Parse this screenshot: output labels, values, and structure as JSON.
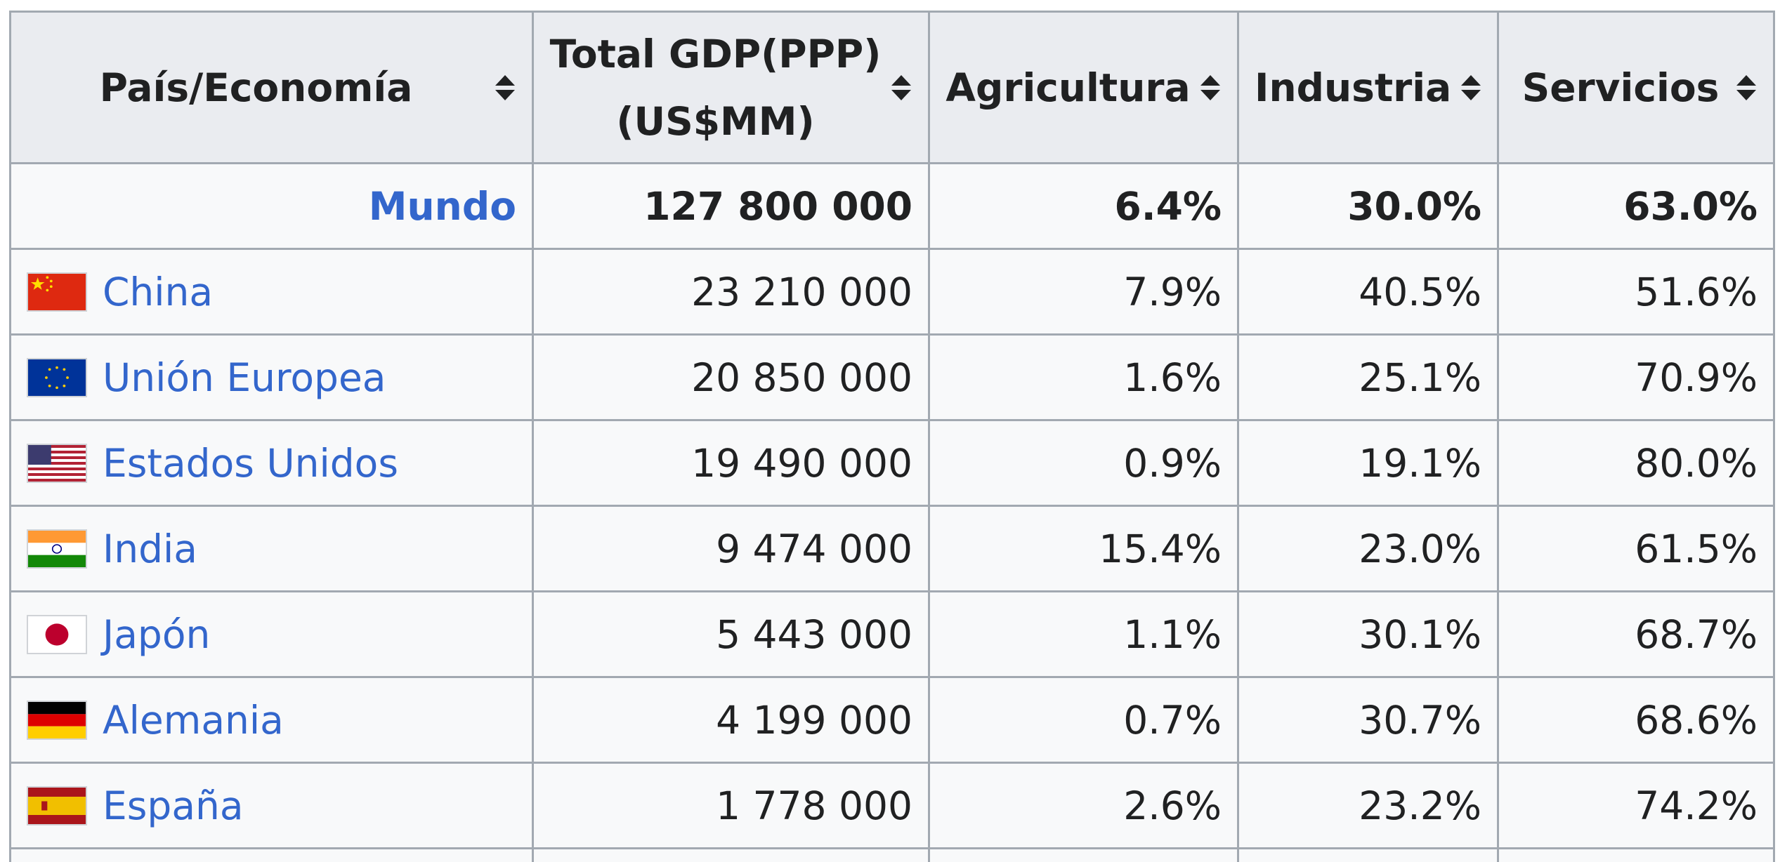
{
  "table": {
    "headers": [
      {
        "label": "País/Economía"
      },
      {
        "label": "Total GDP(PPP) (US$MM)"
      },
      {
        "label": "Agricultura"
      },
      {
        "label": "Industria"
      },
      {
        "label": "Servicios"
      }
    ],
    "world": {
      "name": "Mundo",
      "gdp": "127 800 000",
      "agri": "6.4%",
      "ind": "30.0%",
      "serv": "63.0%"
    },
    "rows": [
      {
        "flag": "china-flag-icon",
        "name": "China",
        "gdp": "23 210 000",
        "agri": "7.9%",
        "ind": "40.5%",
        "serv": "51.6%"
      },
      {
        "flag": "eu-flag-icon",
        "name": "Unión Europea",
        "gdp": "20 850 000",
        "agri": "1.6%",
        "ind": "25.1%",
        "serv": "70.9%"
      },
      {
        "flag": "usa-flag-icon",
        "name": "Estados Unidos",
        "gdp": "19 490 000",
        "agri": "0.9%",
        "ind": "19.1%",
        "serv": "80.0%"
      },
      {
        "flag": "india-flag-icon",
        "name": "India",
        "gdp": "9 474 000",
        "agri": "15.4%",
        "ind": "23.0%",
        "serv": "61.5%"
      },
      {
        "flag": "japan-flag-icon",
        "name": "Japón",
        "gdp": "5 443 000",
        "agri": "1.1%",
        "ind": "30.1%",
        "serv": "68.7%"
      },
      {
        "flag": "germany-flag-icon",
        "name": "Alemania",
        "gdp": "4 199 000",
        "agri": "0.7%",
        "ind": "30.7%",
        "serv": "68.6%"
      },
      {
        "flag": "spain-flag-icon",
        "name": "España",
        "gdp": "1 778 000",
        "agri": "2.6%",
        "ind": "23.2%",
        "serv": "74.2%"
      }
    ],
    "colors": {
      "header_bg": "#eaecf0",
      "cell_bg": "#f8f9fa",
      "border": "#a2a9b1",
      "link": "#3366cc"
    },
    "sort_icon": "sort-updown-icon"
  }
}
